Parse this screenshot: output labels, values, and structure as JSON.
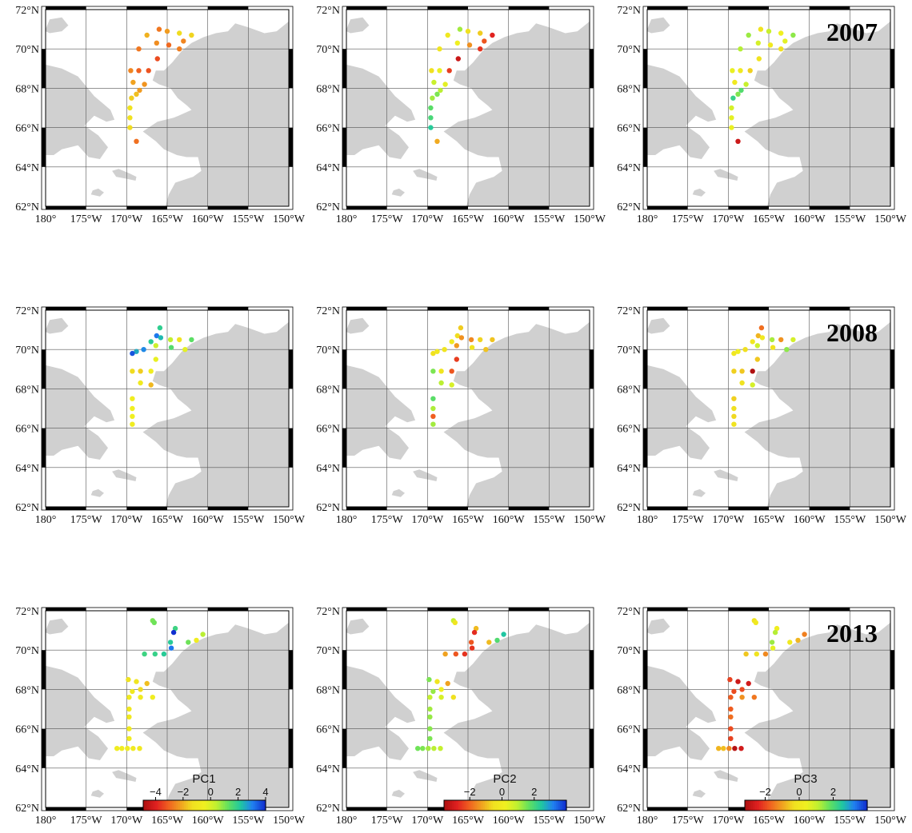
{
  "lat_labels": [
    "72°N",
    "70°N",
    "68°N",
    "66°N",
    "64°N",
    "62°N"
  ],
  "lon_labels": [
    "180°",
    "175°W",
    "170°W",
    "165°W",
    "160°W",
    "155°W",
    "150°W"
  ],
  "lat_values": [
    72,
    70,
    68,
    66,
    64,
    62
  ],
  "lon_values": [
    -180,
    -175,
    -170,
    -165,
    -160,
    -155,
    -150
  ],
  "years": [
    "2007",
    "2008",
    "2013"
  ],
  "colors": {
    "land": "#d0d0d0",
    "ocean": "#ffffff",
    "grid": "#555555",
    "frame": "#000000"
  },
  "colorbars": [
    {
      "title": "PC1",
      "ticks": [
        "−4",
        "−2",
        "0",
        "2",
        "4"
      ],
      "tick_values": [
        -4,
        -2,
        0,
        2,
        4
      ],
      "range": [
        -4.9,
        4.0
      ]
    },
    {
      "title": "PC2",
      "ticks": [
        "−2",
        "0",
        "2"
      ],
      "tick_values": [
        -2,
        0,
        2
      ],
      "range": [
        -3.6,
        4.0
      ]
    },
    {
      "title": "PC3",
      "ticks": [
        "−2",
        "0",
        "2"
      ],
      "tick_values": [
        -2,
        0,
        2
      ],
      "range": [
        -3.2,
        4.0
      ]
    }
  ],
  "colormap": [
    "#b01010",
    "#e02020",
    "#f06020",
    "#f0a020",
    "#f0e020",
    "#f0f020",
    "#c0f030",
    "#60e060",
    "#20c8a0",
    "#2080f0",
    "#1030d0"
  ],
  "stations": {
    "2007": [
      {
        "lon": -166.0,
        "lat": 71.0,
        "pc": [
          -2.8,
          1.2,
          -0.2
        ]
      },
      {
        "lon": -167.5,
        "lat": 70.7,
        "pc": [
          -2.0,
          -0.2,
          1.4
        ]
      },
      {
        "lon": -165.0,
        "lat": 70.9,
        "pc": [
          -2.3,
          -0.5,
          1.0
        ]
      },
      {
        "lon": -163.5,
        "lat": 70.8,
        "pc": [
          -1.4,
          -0.8,
          0.4
        ]
      },
      {
        "lon": -162.0,
        "lat": 70.7,
        "pc": [
          -1.5,
          -2.8,
          1.5
        ]
      },
      {
        "lon": -166.3,
        "lat": 70.3,
        "pc": [
          -2.5,
          0.2,
          0.8
        ]
      },
      {
        "lon": -164.8,
        "lat": 70.2,
        "pc": [
          -3.0,
          -1.5,
          0.1
        ]
      },
      {
        "lon": -163.0,
        "lat": 70.4,
        "pc": [
          -2.6,
          -2.2,
          0.6
        ]
      },
      {
        "lon": -168.5,
        "lat": 70.0,
        "pc": [
          -2.8,
          -0.3,
          1.2
        ]
      },
      {
        "lon": -163.5,
        "lat": 70.0,
        "pc": [
          -2.7,
          -2.6,
          -0.3
        ]
      },
      {
        "lon": -166.2,
        "lat": 69.5,
        "pc": [
          -3.4,
          -3.2,
          -0.2
        ]
      },
      {
        "lon": -169.5,
        "lat": 68.9,
        "pc": [
          -2.6,
          -0.5,
          0.5
        ]
      },
      {
        "lon": -168.5,
        "lat": 68.9,
        "pc": [
          -3.1,
          0.3,
          0.1
        ]
      },
      {
        "lon": -167.3,
        "lat": 68.9,
        "pc": [
          -3.3,
          -2.5,
          -0.5
        ]
      },
      {
        "lon": -169.2,
        "lat": 68.3,
        "pc": [
          -2.2,
          0.8,
          0.1
        ]
      },
      {
        "lon": -167.8,
        "lat": 68.2,
        "pc": [
          -2.4,
          0.4,
          1.0
        ]
      },
      {
        "lon": -168.4,
        "lat": 67.9,
        "pc": [
          -2.3,
          1.0,
          2.0
        ]
      },
      {
        "lon": -168.8,
        "lat": 67.7,
        "pc": [
          -1.8,
          1.5,
          1.6
        ]
      },
      {
        "lon": -169.4,
        "lat": 67.5,
        "pc": [
          -1.6,
          1.2,
          2.3
        ]
      },
      {
        "lon": -169.6,
        "lat": 67.0,
        "pc": [
          -1.2,
          1.8,
          0.8
        ]
      },
      {
        "lon": -169.6,
        "lat": 66.5,
        "pc": [
          -1.3,
          2.0,
          0.6
        ]
      },
      {
        "lon": -169.6,
        "lat": 66.0,
        "pc": [
          -1.4,
          2.4,
          0.5
        ]
      },
      {
        "lon": -168.8,
        "lat": 65.3,
        "pc": [
          -2.9,
          -1.2,
          -2.8
        ]
      }
    ],
    "2008": [
      {
        "lon": -165.9,
        "lat": 71.1,
        "pc": [
          2.0,
          -0.8,
          -1.6
        ]
      },
      {
        "lon": -166.3,
        "lat": 70.7,
        "pc": [
          3.2,
          -0.6,
          -0.8
        ]
      },
      {
        "lon": -165.8,
        "lat": 70.6,
        "pc": [
          2.4,
          -1.5,
          0.1
        ]
      },
      {
        "lon": -164.6,
        "lat": 70.5,
        "pc": [
          0.4,
          -1.6,
          1.3
        ]
      },
      {
        "lon": -163.5,
        "lat": 70.5,
        "pc": [
          -1.2,
          -0.7,
          -1.2
        ]
      },
      {
        "lon": -162.0,
        "lat": 70.5,
        "pc": [
          1.4,
          -0.9,
          0.8
        ]
      },
      {
        "lon": -167.0,
        "lat": 70.4,
        "pc": [
          2.1,
          -0.1,
          0.0
        ]
      },
      {
        "lon": -166.4,
        "lat": 70.2,
        "pc": [
          0.2,
          -1.4,
          0.9
        ]
      },
      {
        "lon": -164.5,
        "lat": 70.1,
        "pc": [
          1.5,
          -0.3,
          -0.2
        ]
      },
      {
        "lon": -162.8,
        "lat": 70.0,
        "pc": [
          -0.2,
          -0.9,
          1.5
        ]
      },
      {
        "lon": -167.9,
        "lat": 70.0,
        "pc": [
          3.0,
          -0.3,
          -0.3
        ]
      },
      {
        "lon": -168.8,
        "lat": 69.9,
        "pc": [
          2.6,
          -0.2,
          0.3
        ]
      },
      {
        "lon": -169.3,
        "lat": 69.8,
        "pc": [
          3.6,
          -0.5,
          0.0
        ]
      },
      {
        "lon": -166.4,
        "lat": 69.5,
        "pc": [
          -0.3,
          -2.5,
          -0.6
        ]
      },
      {
        "lon": -169.3,
        "lat": 68.9,
        "pc": [
          -1.4,
          1.5,
          -0.5
        ]
      },
      {
        "lon": -168.3,
        "lat": 68.9,
        "pc": [
          -1.6,
          -0.3,
          -0.6
        ]
      },
      {
        "lon": -167.0,
        "lat": 68.9,
        "pc": [
          -0.6,
          -2.2,
          -3.9
        ]
      },
      {
        "lon": -168.3,
        "lat": 68.3,
        "pc": [
          -0.8,
          1.0,
          -0.2
        ]
      },
      {
        "lon": -167.0,
        "lat": 68.2,
        "pc": [
          -1.9,
          0.6,
          0.8
        ]
      },
      {
        "lon": -169.3,
        "lat": 67.5,
        "pc": [
          -0.6,
          1.8,
          -0.5
        ]
      },
      {
        "lon": -169.3,
        "lat": 67.0,
        "pc": [
          -0.5,
          1.1,
          -0.3
        ]
      },
      {
        "lon": -169.3,
        "lat": 66.6,
        "pc": [
          -0.5,
          -2.1,
          -0.4
        ]
      },
      {
        "lon": -169.3,
        "lat": 66.2,
        "pc": [
          -0.7,
          1.2,
          -0.2
        ]
      }
    ],
    "2013": [
      {
        "lon": -166.8,
        "lat": 71.5,
        "pc": [
          1.1,
          0.9,
          -0.2
        ]
      },
      {
        "lon": -166.6,
        "lat": 71.4,
        "pc": [
          1.2,
          -0.3,
          0.1
        ]
      },
      {
        "lon": -164.0,
        "lat": 71.1,
        "pc": [
          1.8,
          -1.0,
          0.3
        ]
      },
      {
        "lon": -164.2,
        "lat": 70.9,
        "pc": [
          4.0,
          -2.7,
          1.2
        ]
      },
      {
        "lon": -160.6,
        "lat": 70.8,
        "pc": [
          0.5,
          2.5,
          -1.4
        ]
      },
      {
        "lon": -161.4,
        "lat": 70.5,
        "pc": [
          -0.6,
          1.9,
          -0.8
        ]
      },
      {
        "lon": -162.4,
        "lat": 70.4,
        "pc": [
          1.2,
          -1.0,
          0.1
        ]
      },
      {
        "lon": -164.6,
        "lat": 70.4,
        "pc": [
          2.1,
          -2.2,
          1.4
        ]
      },
      {
        "lon": -164.5,
        "lat": 70.1,
        "pc": [
          3.2,
          -2.6,
          0.6
        ]
      },
      {
        "lon": -167.8,
        "lat": 69.8,
        "pc": [
          1.8,
          -1.3,
          -0.6
        ]
      },
      {
        "lon": -166.5,
        "lat": 69.8,
        "pc": [
          1.9,
          -2.2,
          -0.2
        ]
      },
      {
        "lon": -165.4,
        "lat": 69.8,
        "pc": [
          2.1,
          -2.6,
          -1.3
        ]
      },
      {
        "lon": -169.8,
        "lat": 68.5,
        "pc": [
          -1.2,
          1.5,
          -2.1
        ]
      },
      {
        "lon": -168.8,
        "lat": 68.4,
        "pc": [
          -1.0,
          -0.3,
          -2.8
        ]
      },
      {
        "lon": -167.5,
        "lat": 68.3,
        "pc": [
          -1.8,
          -1.3,
          -2.7
        ]
      },
      {
        "lon": -168.3,
        "lat": 68.0,
        "pc": [
          -1.4,
          0.2,
          -2.0
        ]
      },
      {
        "lon": -169.3,
        "lat": 67.9,
        "pc": [
          -0.9,
          1.3,
          -2.0
        ]
      },
      {
        "lon": -169.7,
        "lat": 67.6,
        "pc": [
          -0.8,
          0.9,
          -1.8
        ]
      },
      {
        "lon": -168.3,
        "lat": 67.6,
        "pc": [
          -0.8,
          0.6,
          -1.2
        ]
      },
      {
        "lon": -166.8,
        "lat": 67.6,
        "pc": [
          -0.6,
          -0.5,
          -1.5
        ]
      },
      {
        "lon": -169.7,
        "lat": 67.0,
        "pc": [
          -0.9,
          1.2,
          -1.8
        ]
      },
      {
        "lon": -169.7,
        "lat": 66.6,
        "pc": [
          -0.9,
          1.3,
          -1.6
        ]
      },
      {
        "lon": -169.7,
        "lat": 66.0,
        "pc": [
          -0.8,
          1.4,
          -2.0
        ]
      },
      {
        "lon": -169.7,
        "lat": 65.5,
        "pc": [
          -0.7,
          1.5,
          -2.1
        ]
      },
      {
        "lon": -171.2,
        "lat": 65.0,
        "pc": [
          -0.7,
          1.6,
          -0.8
        ]
      },
      {
        "lon": -170.6,
        "lat": 65.0,
        "pc": [
          -0.6,
          1.5,
          -0.7
        ]
      },
      {
        "lon": -169.9,
        "lat": 65.0,
        "pc": [
          -0.7,
          1.2,
          -1.3
        ]
      },
      {
        "lon": -169.2,
        "lat": 65.0,
        "pc": [
          -0.8,
          1.0,
          -3.1
        ]
      },
      {
        "lon": -168.4,
        "lat": 65.0,
        "pc": [
          -0.9,
          0.9,
          -2.7
        ]
      }
    ]
  }
}
